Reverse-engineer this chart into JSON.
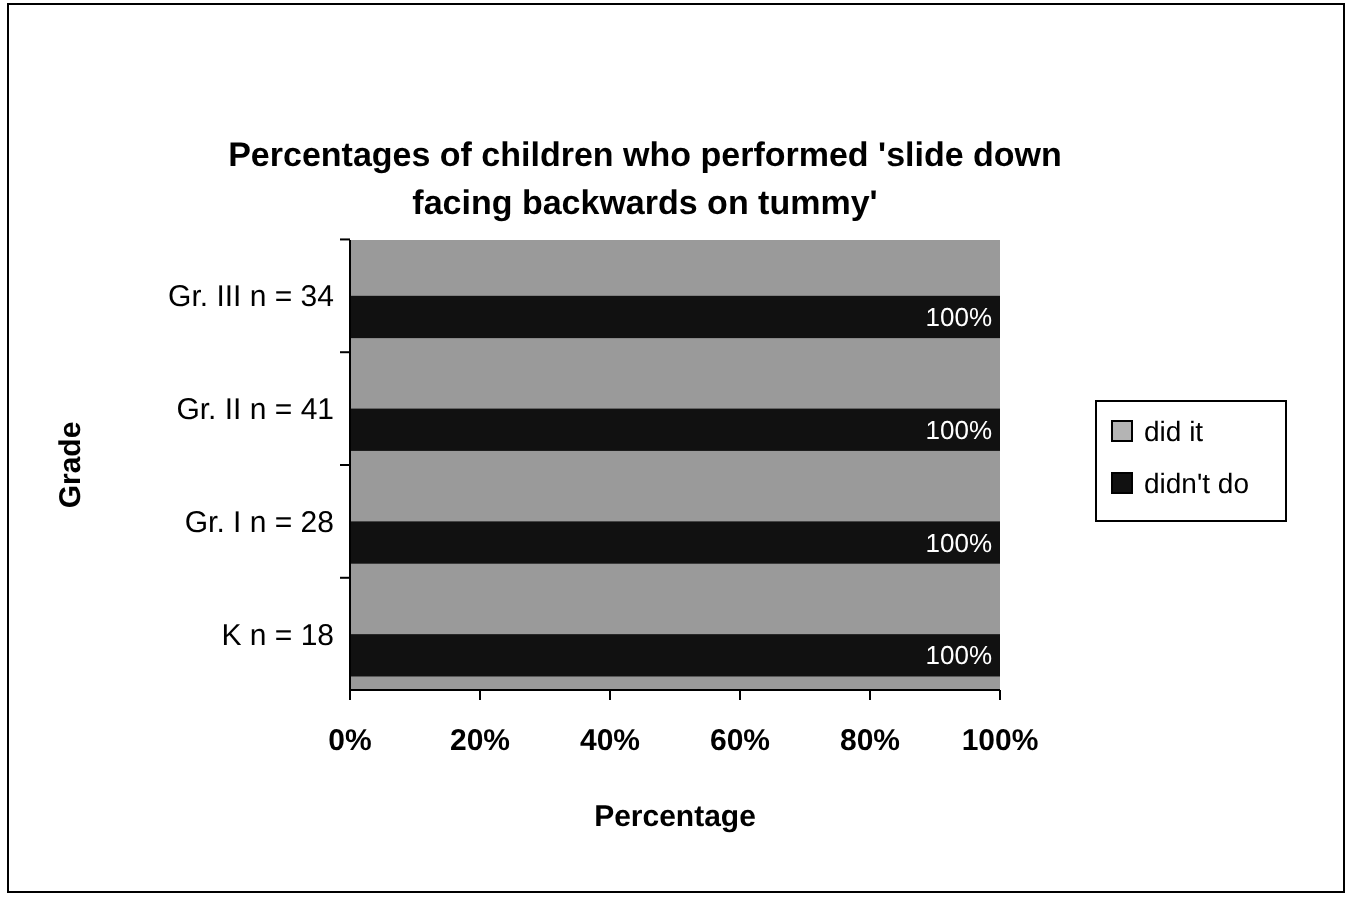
{
  "chart_data": {
    "type": "bar",
    "orientation": "horizontal",
    "title": "Percentages of children who performed 'slide down facing backwards on tummy'",
    "xlabel": "Percentage",
    "ylabel": "Grade",
    "categories": [
      "Gr. III n = 34",
      "Gr. II n = 41",
      "Gr. I n = 28",
      "K n = 18"
    ],
    "series": [
      {
        "name": "did it",
        "color": "#b4b4b4",
        "values": [
          0,
          0,
          0,
          0
        ]
      },
      {
        "name": "didn't do",
        "color": "#111111",
        "values": [
          100,
          100,
          100,
          100
        ],
        "value_labels": [
          "100%",
          "100%",
          "100%",
          "100%"
        ]
      }
    ],
    "xlim": [
      0,
      100
    ],
    "xticks": [
      {
        "value": 0,
        "label": "0%"
      },
      {
        "value": 20,
        "label": "20%"
      },
      {
        "value": 40,
        "label": "40%"
      },
      {
        "value": 60,
        "label": "60%"
      },
      {
        "value": 80,
        "label": "80%"
      },
      {
        "value": 100,
        "label": "100%"
      }
    ],
    "grid": false,
    "legend": "right"
  }
}
